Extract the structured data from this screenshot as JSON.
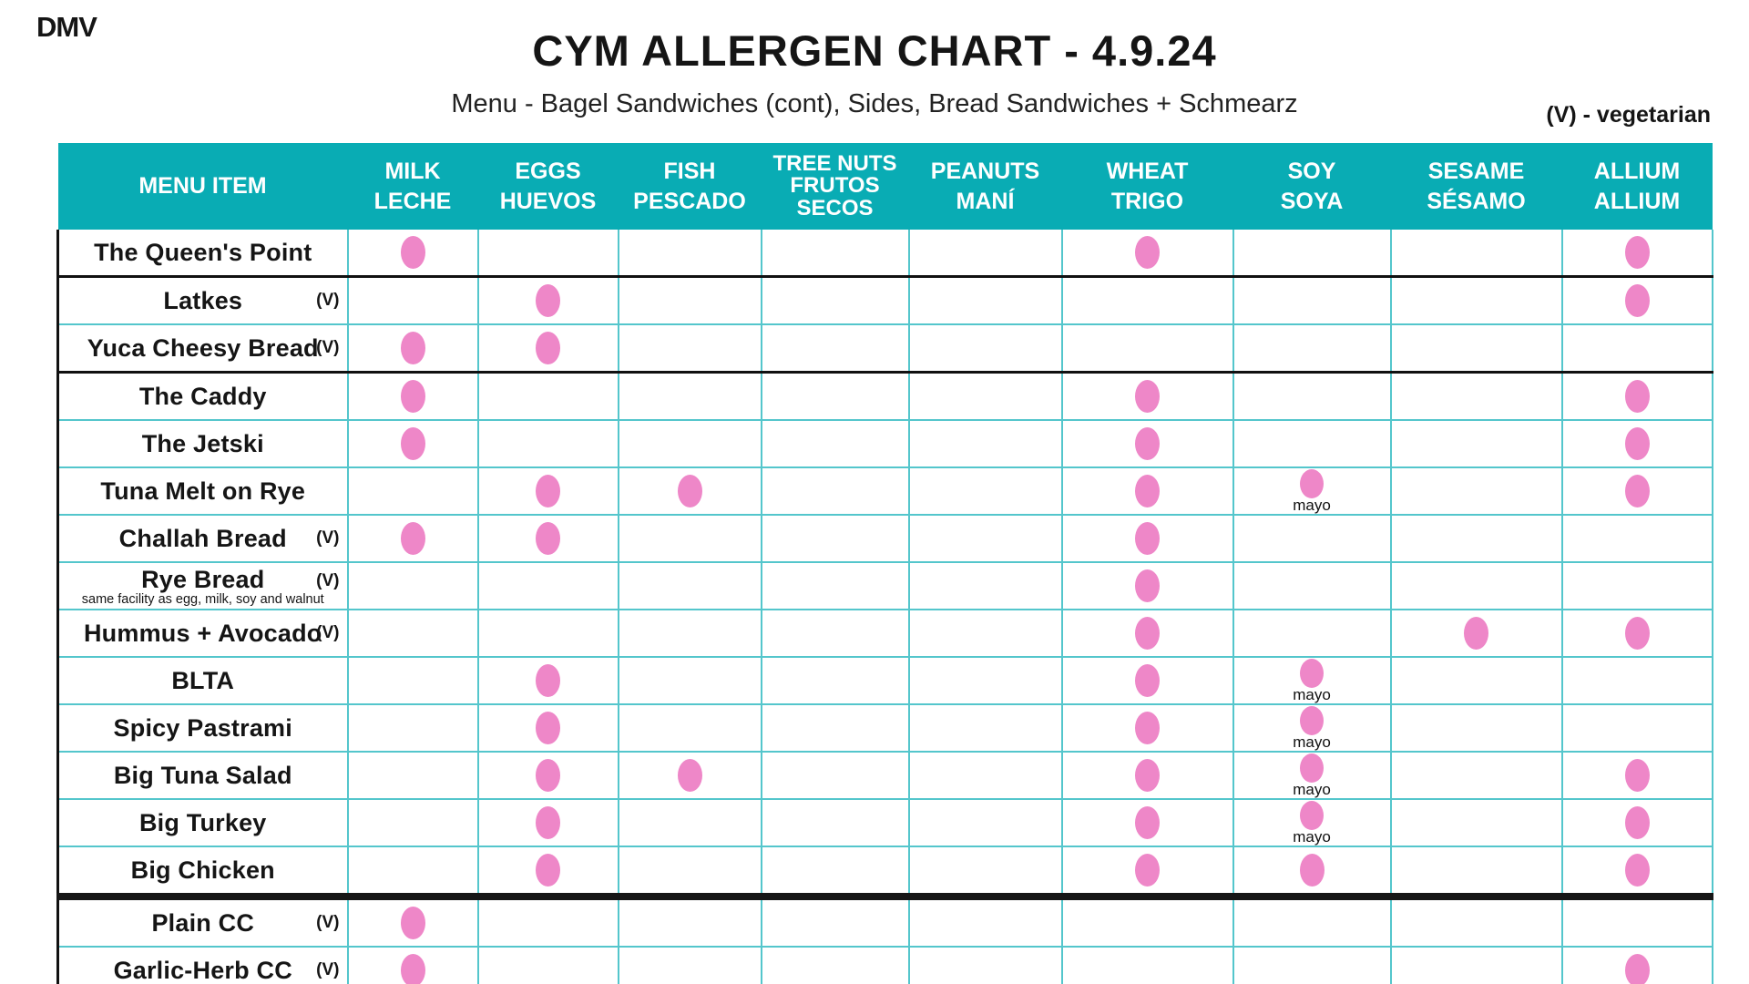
{
  "page": {
    "brand": "DMV",
    "title": "CYM ALLERGEN CHART - 4.9.24",
    "subtitle": "Menu - Bagel Sandwiches (cont), Sides, Bread Sandwiches + Schmearz",
    "legend": "(V) - vegetarian"
  },
  "labels": {
    "menu_header": "MENU ITEM",
    "veg_marker": "(V)",
    "mayo": "mayo"
  },
  "colors": {
    "teal_header": "#09acb4",
    "grid_line": "#54c6cc",
    "dot_pink": "#ee87c8",
    "section_line": "#111111"
  },
  "chart_data": {
    "type": "table",
    "title": "CYM ALLERGEN CHART - 4.9.24",
    "columns": [
      {
        "id": "milk",
        "en": "MILK",
        "es": "LECHE"
      },
      {
        "id": "eggs",
        "en": "EGGS",
        "es": "HUEVOS"
      },
      {
        "id": "fish",
        "en": "FISH",
        "es": "PESCADO"
      },
      {
        "id": "tree_nuts",
        "en": "TREE NUTS",
        "es": "FRUTOS SECOS"
      },
      {
        "id": "peanuts",
        "en": "PEANUTS",
        "es": "MANÍ"
      },
      {
        "id": "wheat",
        "en": "WHEAT",
        "es": "TRIGO"
      },
      {
        "id": "soy",
        "en": "SOY",
        "es": "SOYA"
      },
      {
        "id": "sesame",
        "en": "SESAME",
        "es": "SÉSAMO"
      },
      {
        "id": "allium",
        "en": "ALLIUM",
        "es": "ALLIUM"
      }
    ],
    "rows": [
      {
        "name": "The Queen's Point",
        "vegetarian": false,
        "allergens": [
          "milk",
          "wheat",
          "allium"
        ],
        "separator": "black"
      },
      {
        "name": "Latkes",
        "vegetarian": true,
        "allergens": [
          "eggs",
          "allium"
        ]
      },
      {
        "name": "Yuca Cheesy Bread",
        "vegetarian": true,
        "allergens": [
          "milk",
          "eggs"
        ],
        "separator": "black"
      },
      {
        "name": "The Caddy",
        "vegetarian": false,
        "allergens": [
          "milk",
          "wheat",
          "allium"
        ]
      },
      {
        "name": "The Jetski",
        "vegetarian": false,
        "allergens": [
          "milk",
          "wheat",
          "allium"
        ]
      },
      {
        "name": "Tuna Melt on Rye",
        "vegetarian": false,
        "allergens": [
          "eggs",
          "fish",
          "wheat",
          "soy",
          "allium"
        ],
        "soy_note": "mayo"
      },
      {
        "name": "Challah Bread",
        "vegetarian": true,
        "allergens": [
          "milk",
          "eggs",
          "wheat"
        ]
      },
      {
        "name": "Rye Bread",
        "vegetarian": true,
        "note": "same facility as egg, milk, soy and walnut",
        "allergens": [
          "wheat"
        ]
      },
      {
        "name": "Hummus + Avocado",
        "vegetarian": true,
        "allergens": [
          "wheat",
          "sesame",
          "allium"
        ]
      },
      {
        "name": "BLTA",
        "vegetarian": false,
        "allergens": [
          "eggs",
          "wheat",
          "soy"
        ],
        "soy_note": "mayo"
      },
      {
        "name": "Spicy Pastrami",
        "vegetarian": false,
        "allergens": [
          "eggs",
          "wheat",
          "soy"
        ],
        "soy_note": "mayo"
      },
      {
        "name": "Big Tuna Salad",
        "vegetarian": false,
        "allergens": [
          "eggs",
          "fish",
          "wheat",
          "soy",
          "allium"
        ],
        "soy_note": "mayo"
      },
      {
        "name": "Big Turkey",
        "vegetarian": false,
        "allergens": [
          "eggs",
          "wheat",
          "soy",
          "allium"
        ],
        "soy_note": "mayo"
      },
      {
        "name": "Big Chicken",
        "vegetarian": false,
        "allergens": [
          "eggs",
          "wheat",
          "soy",
          "allium"
        ],
        "separator": "thick"
      },
      {
        "name": "Plain CC",
        "vegetarian": true,
        "allergens": [
          "milk"
        ]
      },
      {
        "name": "Garlic-Herb CC",
        "vegetarian": true,
        "allergens": [
          "milk",
          "allium"
        ]
      }
    ]
  }
}
